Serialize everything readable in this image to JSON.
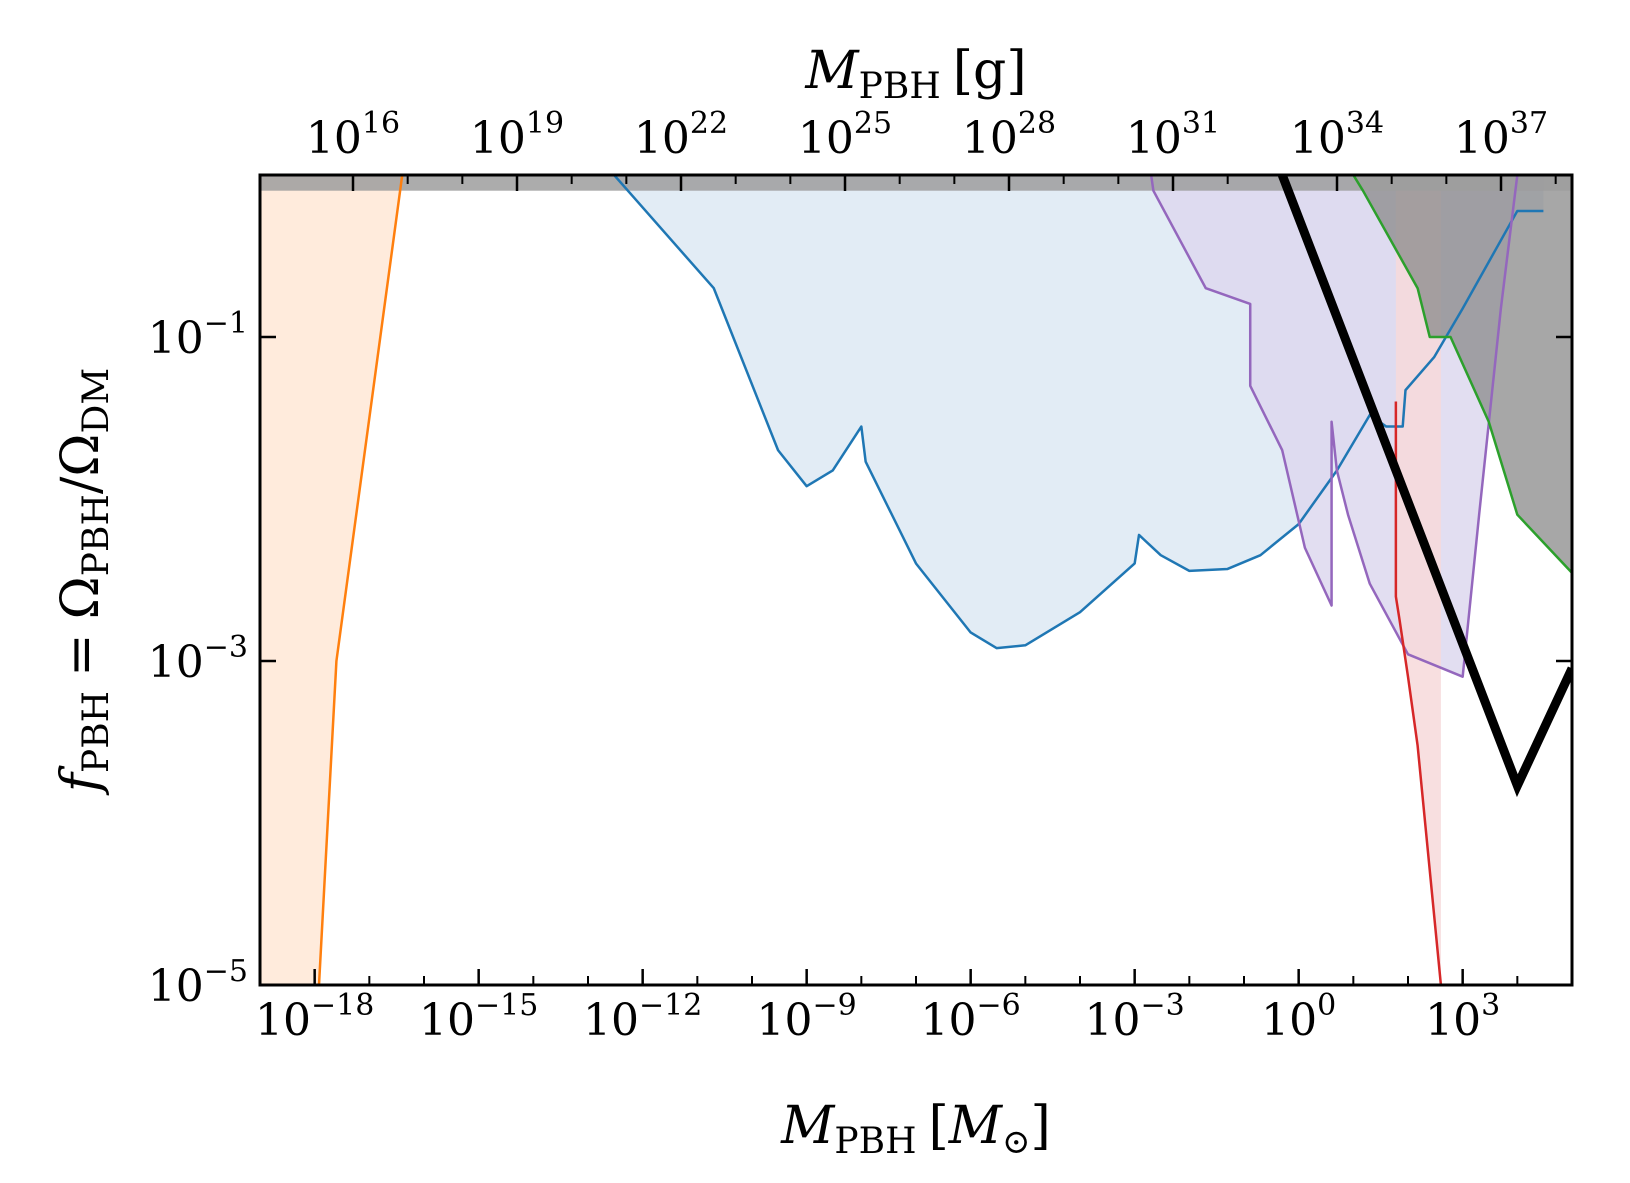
{
  "chart_data": {
    "type": "area",
    "title": "",
    "xscale": "log",
    "yscale": "log",
    "xlim": [
      1e-19,
      100000.0
    ],
    "ylim": [
      1e-05,
      1
    ],
    "grid": false,
    "xlabel": {
      "symbol": "M",
      "sub": "PBH",
      "unit": "M",
      "unit_sub": "⊙"
    },
    "ylabel": {
      "f": "f",
      "f_sub": "PBH",
      "eq": "=",
      "omega1": "Ω",
      "omega1_sub": "PBH",
      "slash": "/",
      "omega2": "Ω",
      "omega2_sub": "DM"
    },
    "top_xlabel": {
      "symbol": "M",
      "sub": "PBH",
      "unit": "g"
    },
    "xticks": [
      {
        "mantissa": "10",
        "exp": "−18",
        "value": 1e-18
      },
      {
        "mantissa": "10",
        "exp": "−15",
        "value": 1e-15
      },
      {
        "mantissa": "10",
        "exp": "−12",
        "value": 1e-12
      },
      {
        "mantissa": "10",
        "exp": "−9",
        "value": 1e-09
      },
      {
        "mantissa": "10",
        "exp": "−6",
        "value": 1e-06
      },
      {
        "mantissa": "10",
        "exp": "−3",
        "value": 0.001
      },
      {
        "mantissa": "10",
        "exp": "0",
        "value": 1
      },
      {
        "mantissa": "10",
        "exp": "3",
        "value": 1000.0
      }
    ],
    "yticks": [
      {
        "mantissa": "10",
        "exp": "−5",
        "value": 1e-05
      },
      {
        "mantissa": "10",
        "exp": "−3",
        "value": 0.001
      },
      {
        "mantissa": "10",
        "exp": "−1",
        "value": 0.1
      }
    ],
    "top_xticks": [
      {
        "mantissa": "10",
        "exp": "16",
        "grams": 1e+16
      },
      {
        "mantissa": "10",
        "exp": "19",
        "grams": 1e+19
      },
      {
        "mantissa": "10",
        "exp": "22",
        "grams": 1e+22
      },
      {
        "mantissa": "10",
        "exp": "25",
        "grams": 1e+25
      },
      {
        "mantissa": "10",
        "exp": "28",
        "grams": 1e+28
      },
      {
        "mantissa": "10",
        "exp": "31",
        "grams": 1e+31
      },
      {
        "mantissa": "10",
        "exp": "34",
        "grams": 1e+34
      },
      {
        "mantissa": "10",
        "exp": "37",
        "grams": 1e+37
      }
    ],
    "grams_per_msun": 1.989e+33,
    "top_band": {
      "from": 0.8,
      "to": 1.0,
      "color": "#9e9e9e"
    },
    "series": [
      {
        "color": "#ff7f0e",
        "fill": "#ffe8d6",
        "fill_side": "left",
        "linewidth": 2.5,
        "points": [
          [
            1.2e-18,
            1e-05
          ],
          [
            2.5e-18,
            0.001
          ],
          [
            4e-17,
            1
          ]
        ]
      },
      {
        "color": "#1f77b4",
        "fill": "#dde9f3",
        "fill_side": "above",
        "linewidth": 2.5,
        "points": [
          [
            3e-13,
            1
          ],
          [
            2e-11,
            0.2
          ],
          [
            3e-10,
            0.02
          ],
          [
            1e-09,
            0.012
          ],
          [
            3e-09,
            0.015
          ],
          [
            1e-08,
            0.028
          ],
          [
            1.2e-08,
            0.017
          ],
          [
            1e-07,
            0.004
          ],
          [
            1e-06,
            0.0015
          ],
          [
            3e-06,
            0.0012
          ],
          [
            1e-05,
            0.00125
          ],
          [
            0.0001,
            0.002
          ],
          [
            0.001,
            0.004
          ],
          [
            0.0012,
            0.006
          ],
          [
            0.003,
            0.0045
          ],
          [
            0.01,
            0.0036
          ],
          [
            0.05,
            0.0037
          ],
          [
            0.2,
            0.0045
          ],
          [
            1,
            0.007
          ],
          [
            5,
            0.015
          ],
          [
            20,
            0.033
          ],
          [
            40,
            0.028
          ],
          [
            80,
            0.028
          ],
          [
            90,
            0.047
          ],
          [
            300,
            0.075
          ],
          [
            1000,
            0.15
          ],
          [
            10000,
            0.6
          ],
          [
            30000,
            0.6
          ]
        ]
      },
      {
        "color": "#9467bd",
        "fill": "#ddd8ee",
        "fill_side": "above",
        "linewidth": 2.5,
        "points": [
          [
            0.002,
            1
          ],
          [
            0.0022,
            0.8
          ],
          [
            0.02,
            0.2
          ],
          [
            0.13,
            0.16
          ],
          [
            0.13,
            0.05
          ],
          [
            0.5,
            0.02
          ],
          [
            1.3,
            0.005
          ],
          [
            4,
            0.0022
          ],
          [
            4,
            0.03
          ],
          [
            5,
            0.015
          ],
          [
            8,
            0.008
          ],
          [
            20,
            0.003
          ],
          [
            100,
            0.0011
          ],
          [
            1000,
            0.0008
          ],
          [
            2000,
            0.008
          ],
          [
            5000,
            0.15
          ],
          [
            10000,
            1
          ]
        ]
      },
      {
        "color": "#d62728",
        "fill": "#f7d9db",
        "fill_side": "above",
        "linewidth": 2.5,
        "points": [
          [
            60,
            0.04
          ],
          [
            60,
            0.0025
          ],
          [
            70,
            0.0018
          ],
          [
            100,
            0.0008
          ],
          [
            150,
            0.0003
          ],
          [
            400,
            1e-05
          ]
        ]
      },
      {
        "color": "#2ca02c",
        "fill": "#8a8a8a",
        "fill_side": "above",
        "linewidth": 2.5,
        "points": [
          [
            10,
            1
          ],
          [
            15,
            0.8
          ],
          [
            150,
            0.2
          ],
          [
            250,
            0.1
          ],
          [
            600,
            0.1
          ],
          [
            3000,
            0.03
          ],
          [
            10000,
            0.008
          ],
          [
            100000,
            0.0035
          ]
        ]
      }
    ],
    "thick_line": {
      "color": "#000000",
      "linewidth": 9,
      "points": [
        [
          0.5,
          1
        ],
        [
          10000,
          0.00017
        ],
        [
          100000,
          0.0009
        ]
      ]
    }
  }
}
